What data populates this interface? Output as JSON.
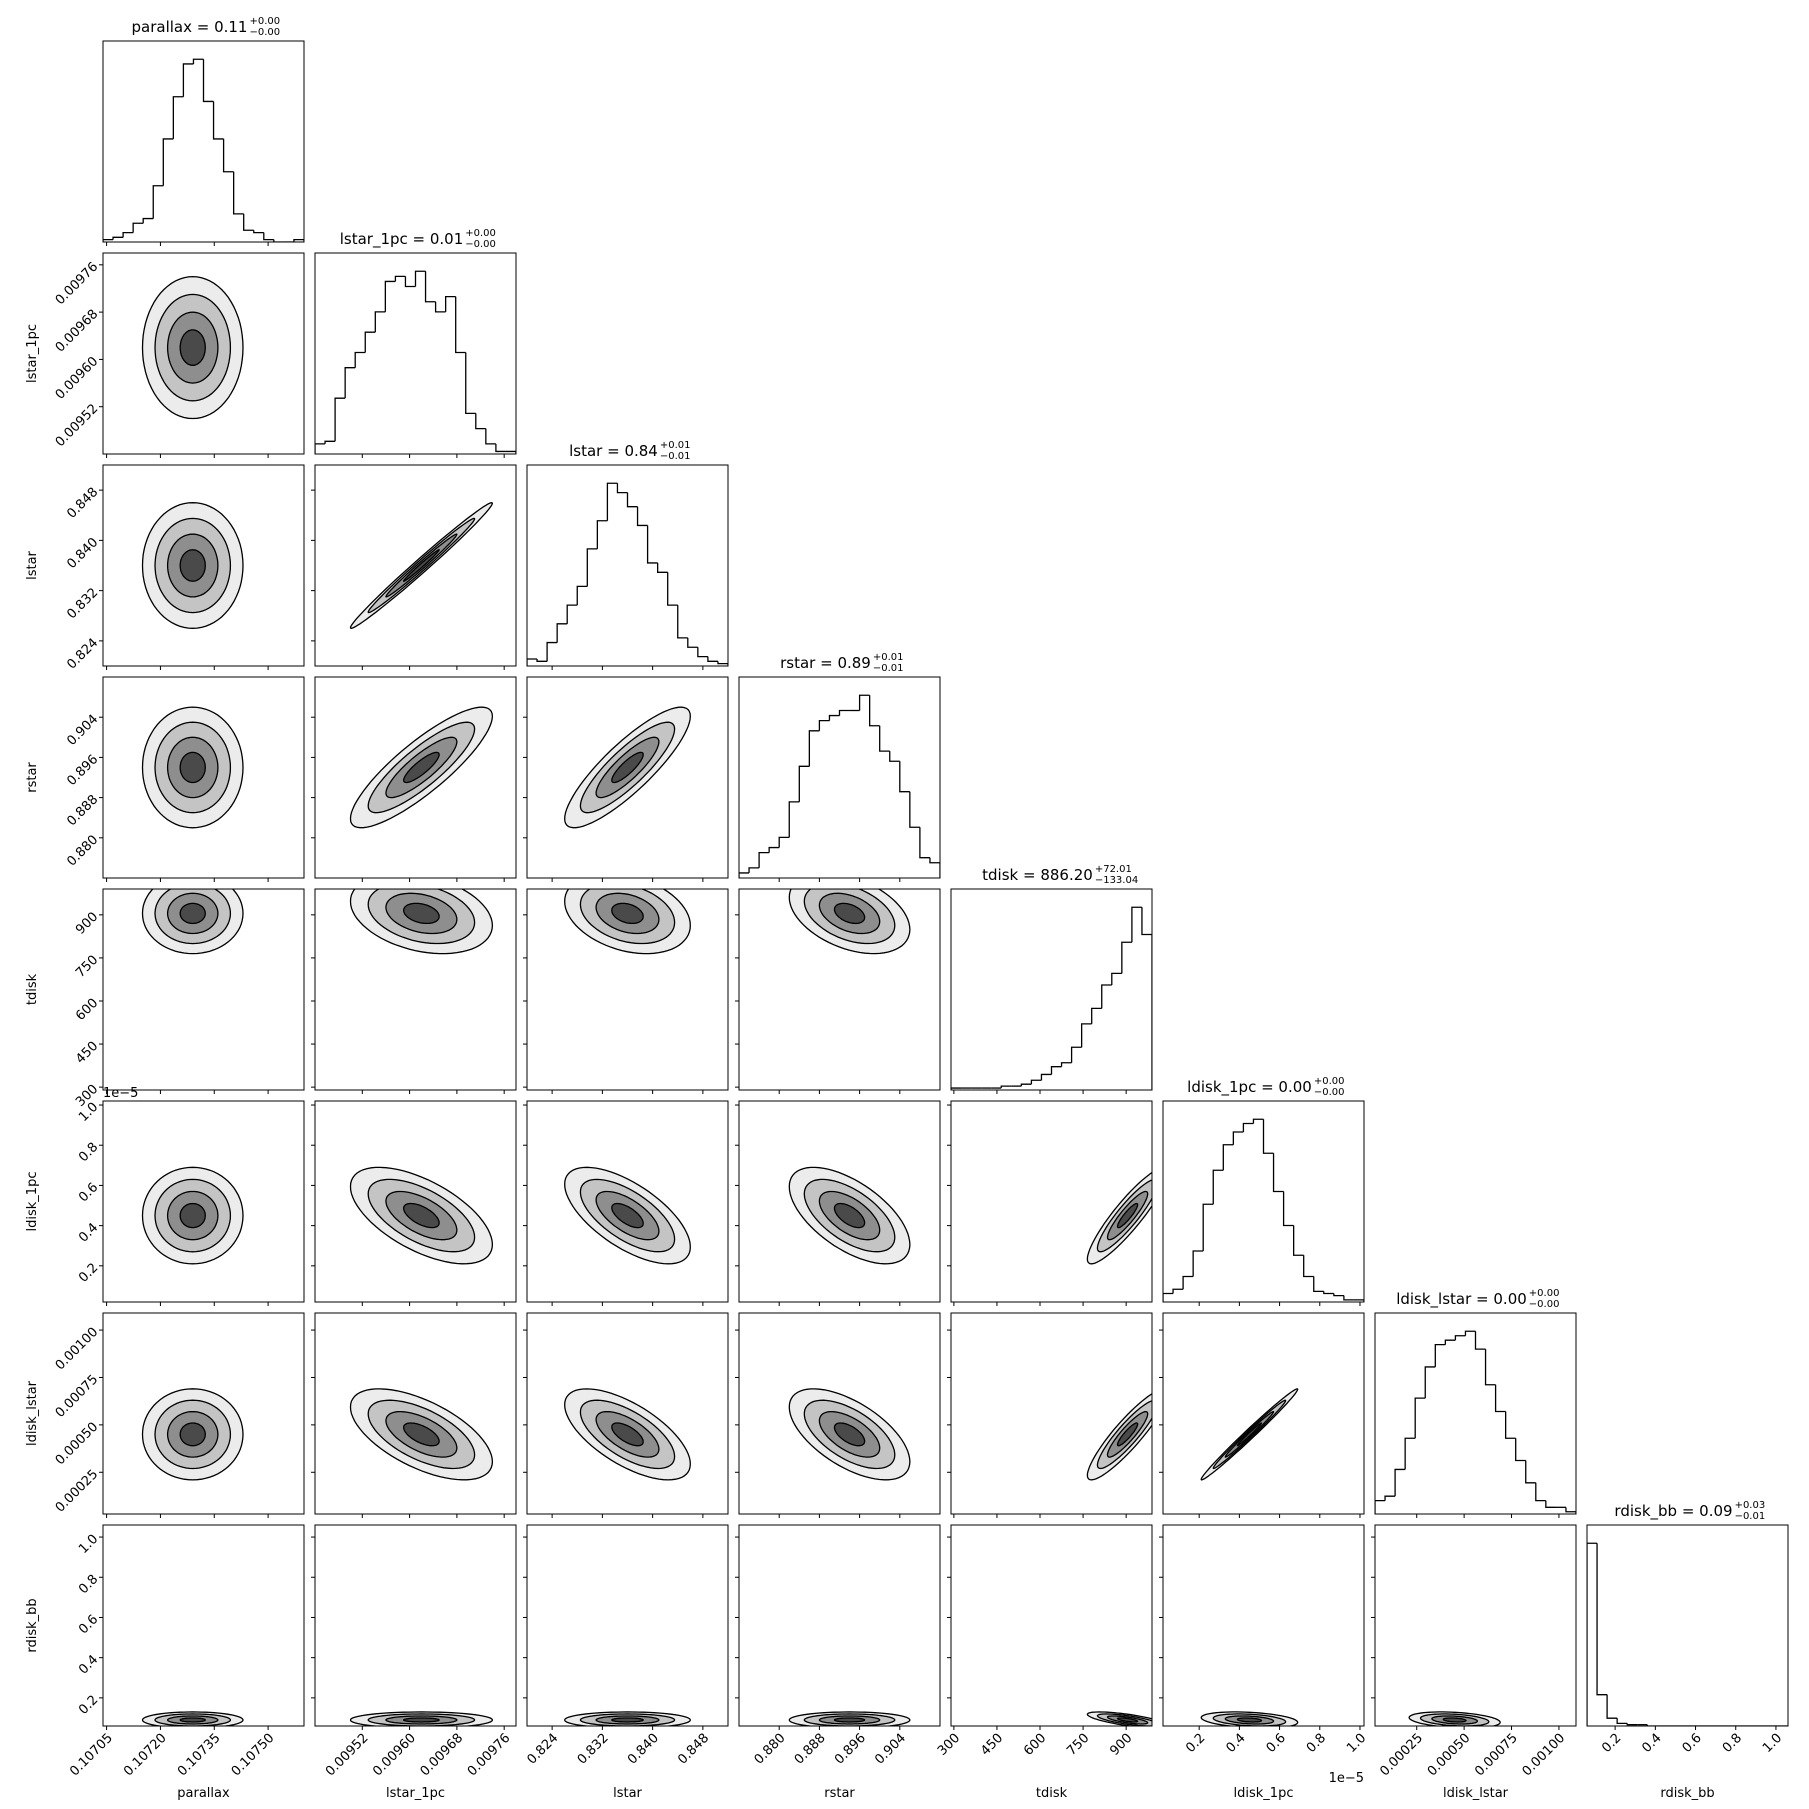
{
  "chart_data": {
    "type": "corner",
    "params": [
      {
        "name": "parallax",
        "title": "parallax = 0.11",
        "upper": "+0.00",
        "lower": "−0.00",
        "lim": [
          0.10704,
          0.1076
        ],
        "ticks": [
          0.10705,
          {
            "value": 0.1072,
            "label": "0.10720"
          },
          0.10735,
          {
            "value": 0.1075,
            "label": "0.10750"
          }
        ],
        "center": 0.10729,
        "sd": 7e-05,
        "bins": [
          0.10704,
          0.107068,
          0.107096,
          0.107124,
          0.107152,
          0.10718,
          0.107208,
          0.107236,
          0.107264,
          0.107292,
          0.10732,
          0.107348,
          0.107376,
          0.107404,
          0.107432,
          0.10746,
          0.107488,
          0.107516,
          0.107544,
          0.107572,
          0.1076
        ],
        "counts": [
          1,
          2,
          4,
          8,
          10,
          24,
          44,
          62,
          76,
          78,
          60,
          44,
          30,
          12,
          5,
          4,
          1,
          0,
          0,
          1
        ]
      },
      {
        "name": "lstar_1pc",
        "title": "lstar_1pc = 0.01",
        "upper": "+0.00",
        "lower": "−0.00",
        "lim": [
          0.00944,
          0.00978
        ],
        "ticks": [
          0.00952,
          {
            "value": 0.0096,
            "label": "0.00960"
          },
          0.00968,
          0.00976
        ],
        "center": 0.00962,
        "sd": 6e-05,
        "bins": [
          0.00944,
          0.009457,
          0.009474,
          0.009491,
          0.009508,
          0.009525,
          0.009542,
          0.009559,
          0.009576,
          0.009593,
          0.00961,
          0.009627,
          0.009644,
          0.009661,
          0.009678,
          0.009695,
          0.009712,
          0.009729,
          0.009746,
          0.009763,
          0.00978
        ],
        "counts": [
          4,
          5,
          22,
          34,
          40,
          48,
          56,
          68,
          70,
          66,
          72,
          60,
          56,
          62,
          40,
          16,
          10,
          4,
          1,
          1
        ]
      },
      {
        "name": "lstar",
        "title": "lstar = 0.84",
        "upper": "+0.01",
        "lower": "−0.01",
        "lim": [
          0.82,
          0.852
        ],
        "ticks": [
          0.824,
          0.832,
          {
            "value": 0.84,
            "label": "0.840"
          },
          0.848
        ],
        "center": 0.836,
        "sd": 0.005,
        "bins": [
          0.82,
          0.8216,
          0.8232,
          0.8248,
          0.8264,
          0.828,
          0.8296,
          0.8312,
          0.8328,
          0.8344,
          0.836,
          0.8376,
          0.8392,
          0.8408,
          0.8424,
          0.844,
          0.8456,
          0.8472,
          0.8488,
          0.8504,
          0.852
        ],
        "counts": [
          3,
          2,
          10,
          18,
          26,
          34,
          50,
          62,
          78,
          74,
          68,
          60,
          44,
          40,
          26,
          12,
          8,
          4,
          2,
          1
        ]
      },
      {
        "name": "rstar",
        "title": "rstar = 0.89",
        "upper": "+0.01",
        "lower": "−0.01",
        "lim": [
          0.872,
          0.912
        ],
        "ticks": [
          {
            "value": 0.88,
            "label": "0.880"
          },
          0.888,
          0.896,
          0.904
        ],
        "center": 0.894,
        "sd": 0.006,
        "bins": [
          0.872,
          0.874,
          0.876,
          0.878,
          0.88,
          0.882,
          0.884,
          0.886,
          0.888,
          0.89,
          0.892,
          0.894,
          0.896,
          0.898,
          0.9,
          0.902,
          0.904,
          0.906,
          0.908,
          0.91,
          0.912
        ],
        "counts": [
          2,
          4,
          10,
          12,
          16,
          30,
          44,
          58,
          62,
          64,
          66,
          66,
          72,
          60,
          50,
          46,
          34,
          20,
          8,
          6
        ]
      },
      {
        "name": "tdisk",
        "title": "tdisk = 886.20",
        "upper": "+72.01",
        "lower": "−133.04",
        "lim": [
          290,
          990
        ],
        "ticks": [
          300,
          450,
          600,
          750,
          900
        ],
        "center": 905,
        "sd": 70,
        "bins": [
          290,
          325,
          360,
          395,
          430,
          465,
          500,
          535,
          570,
          605,
          640,
          675,
          710,
          745,
          780,
          815,
          850,
          885,
          920,
          955,
          990
        ],
        "counts": [
          1,
          1,
          1,
          1,
          1,
          2,
          2,
          3,
          5,
          8,
          12,
          14,
          22,
          34,
          42,
          54,
          60,
          76,
          94,
          80
        ]
      },
      {
        "name": "ldisk_1pc",
        "title": "ldisk_1pc = 0.00",
        "upper": "+0.00",
        "lower": "−0.00",
        "offset": "1e−5",
        "lim": [
          0.02,
          1.02
        ],
        "ticks": [
          0.2,
          0.4,
          0.6,
          0.8,
          {
            "value": 1,
            "label": "1.0"
          }
        ],
        "center": 0.45,
        "sd": 0.12,
        "bins": [
          0.02,
          0.07,
          0.12,
          0.17,
          0.22,
          0.27,
          0.32,
          0.37,
          0.42,
          0.47,
          0.52,
          0.57,
          0.62,
          0.67,
          0.72,
          0.77,
          0.82,
          0.87,
          0.92,
          0.97,
          1.02
        ],
        "counts": [
          4,
          6,
          12,
          24,
          46,
          62,
          74,
          80,
          84,
          86,
          70,
          52,
          36,
          22,
          12,
          5,
          4,
          3,
          1,
          1
        ]
      },
      {
        "name": "ldisk_lstar",
        "title": "ldisk_lstar = 0.00",
        "upper": "+0.00",
        "lower": "−0.00",
        "lim": [
          3e-05,
          0.00109
        ],
        "ticks": [
          0.00025,
          {
            "value": 0.0005,
            "label": "0.00050"
          },
          0.00075,
          {
            "value": 0.001,
            "label": "0.00100"
          }
        ],
        "center": 0.00045,
        "sd": 0.00012,
        "bins": [
          3e-05,
          8.3e-05,
          0.000136,
          0.000189,
          0.000242,
          0.000295,
          0.000348,
          0.000401,
          0.000454,
          0.000507,
          0.00056,
          0.000613,
          0.000666,
          0.000719,
          0.000772,
          0.000825,
          0.000878,
          0.000931,
          0.000984,
          0.001037,
          0.00109
        ],
        "counts": [
          6,
          8,
          20,
          34,
          52,
          66,
          76,
          78,
          80,
          82,
          74,
          58,
          46,
          34,
          24,
          14,
          6,
          3,
          3,
          1
        ]
      },
      {
        "name": "rdisk_bb",
        "title": "rdisk_bb = 0.09",
        "upper": "+0.03",
        "lower": "−0.01",
        "lim": [
          0.06,
          1.06
        ],
        "ticks": [
          0.2,
          0.4,
          0.6,
          0.8,
          {
            "value": 1,
            "label": "1.0"
          }
        ],
        "center": 0.09,
        "sd": 0.02,
        "bins": [
          0.06,
          0.11,
          0.16,
          0.21,
          0.26,
          0.31,
          0.36,
          0.41,
          0.46,
          0.51,
          0.56,
          0.61,
          0.66,
          0.71,
          0.76,
          0.81,
          0.86,
          0.91,
          0.96,
          1.01,
          1.06
        ],
        "counts": [
          140,
          24,
          6,
          2,
          1,
          1,
          0,
          0,
          0,
          0,
          0,
          0,
          0,
          0,
          0,
          0,
          0,
          0,
          0,
          0
        ]
      }
    ],
    "correlations": [
      [
        0
      ],
      [
        0,
        0.99
      ],
      [
        0,
        0.85,
        0.85
      ],
      [
        0,
        -0.3,
        -0.3,
        -0.4
      ],
      [
        0,
        -0.6,
        -0.65,
        -0.6,
        0.9
      ],
      [
        0,
        -0.6,
        -0.65,
        -0.6,
        0.9,
        0.99
      ],
      [
        0,
        0,
        0,
        0,
        -0.7,
        -0.3,
        -0.3
      ]
    ]
  }
}
